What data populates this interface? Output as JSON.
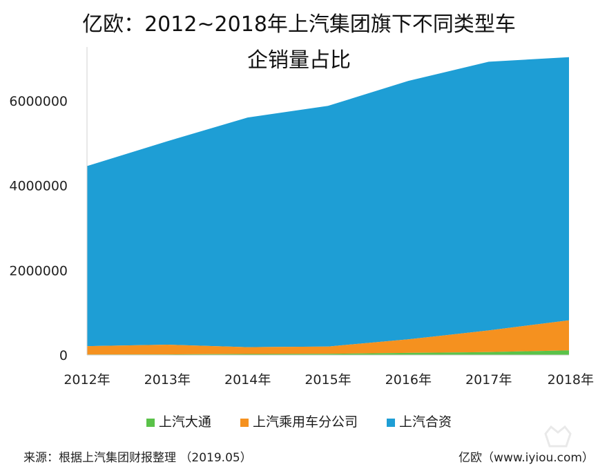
{
  "chart_data": {
    "type": "area",
    "stacked": true,
    "title": "亿欧：2012~2018年上汽集团旗下不同类型车企销量占比",
    "title_lines": [
      "亿欧：2012~2018年上汽集团旗下不同类型车",
      "企销量占比"
    ],
    "categories": [
      "2012年",
      "2013年",
      "2014年",
      "2015年",
      "2016年",
      "2017年",
      "2018年"
    ],
    "y_ticks": [
      "0",
      "2000000",
      "4000000",
      "6000000"
    ],
    "ylim": [
      0,
      7400000
    ],
    "series": [
      {
        "name": "上汽大通",
        "color": "#5ac249",
        "values": [
          10000,
          15000,
          25000,
          30000,
          50000,
          70000,
          110000
        ]
      },
      {
        "name": "上汽乘用车分公司",
        "color": "#f5911f",
        "values": [
          200000,
          230000,
          160000,
          170000,
          320000,
          510000,
          710000
        ]
      },
      {
        "name": "上汽合资",
        "color": "#1e9ed5",
        "values": [
          4250000,
          4800000,
          5420000,
          5680000,
          6100000,
          6340000,
          6210000
        ]
      }
    ],
    "legend_position": "bottom"
  },
  "footer": {
    "source": "来源：根据上汽集团财报整理 （2019.05）",
    "brand": "亿欧（www.iyiou.com）"
  }
}
